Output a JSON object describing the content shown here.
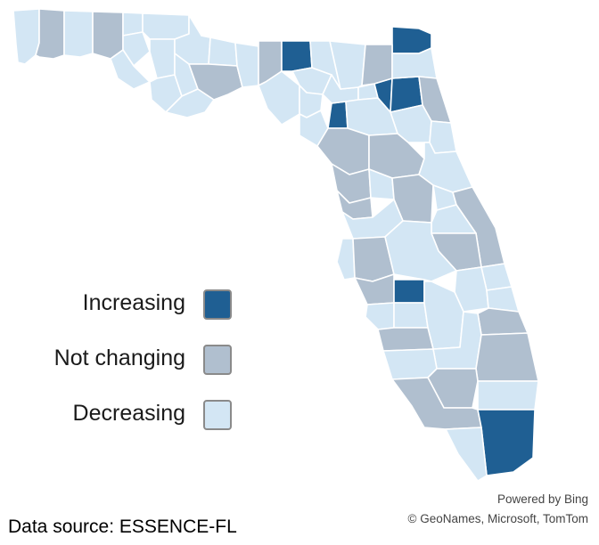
{
  "colors": {
    "increasing": "#1f5f93",
    "not_changing": "#b0bfcf",
    "decreasing": "#d3e6f4",
    "county_border": "#ffffff",
    "swatch_border": "#8a8a8a"
  },
  "legend": {
    "items": [
      {
        "label": "Increasing",
        "category": "increasing"
      },
      {
        "label": "Not changing",
        "category": "not_changing"
      },
      {
        "label": "Decreasing",
        "category": "decreasing"
      }
    ]
  },
  "footer": {
    "data_source": "Data source: ESSENCE-FL",
    "powered_by": "Powered by Bing",
    "attribution": "© GeoNames, Microsoft, TomTom"
  },
  "map": {
    "region": "Florida counties",
    "trend_counts": {
      "increasing": 7,
      "not_changing": 23,
      "decreasing": 37
    }
  }
}
